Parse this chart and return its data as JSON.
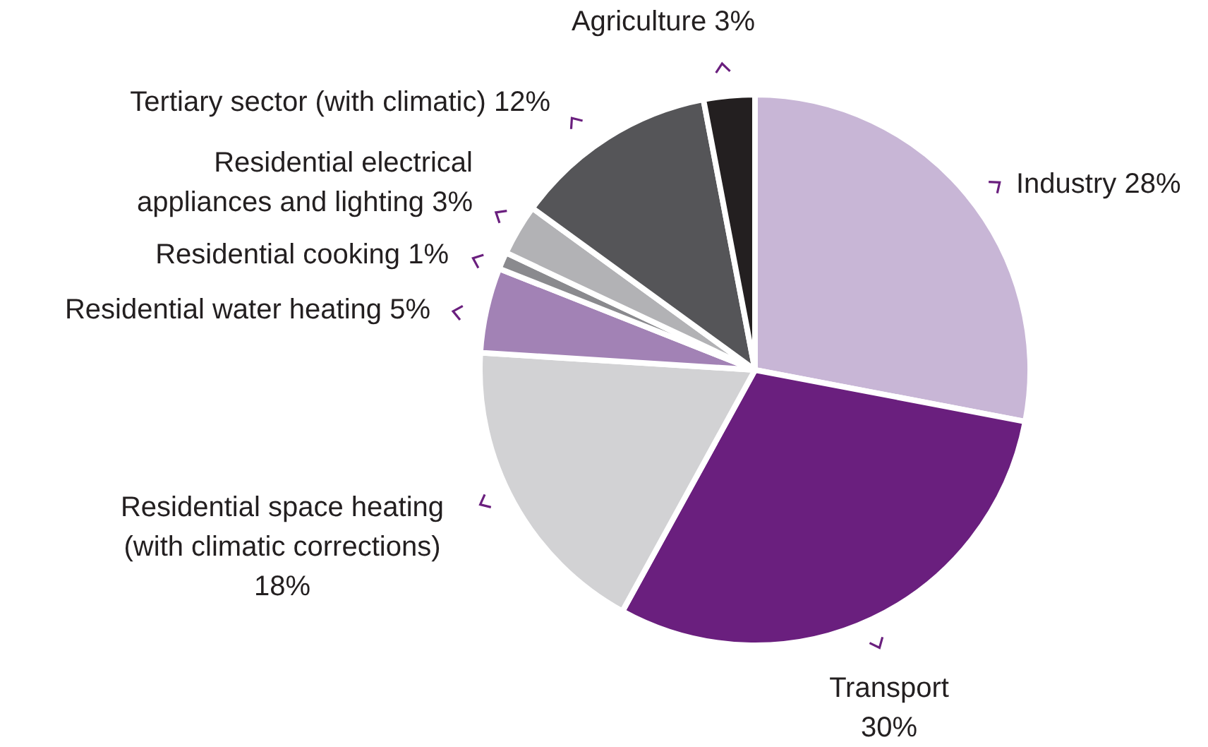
{
  "chart_data": {
    "type": "pie",
    "categories": [
      "Industry",
      "Transport",
      "Residential space heating\n(with climatic corrections)",
      "Residential water heating",
      "Residential cooking",
      "Residential electrical\nappliances and lighting",
      "Tertiary sector (with climatic)",
      "Agriculture"
    ],
    "values": [
      28,
      30,
      18,
      5,
      1,
      3,
      12,
      3
    ],
    "value_labels": [
      "28%",
      "30%",
      "18%",
      "5%",
      "1%",
      "3%",
      "12%",
      "3%"
    ],
    "colors": [
      "#c8b6d6",
      "#6a1f7e",
      "#d2d2d4",
      "#a282b5",
      "#8a8a8e",
      "#b2b2b5",
      "#555558",
      "#231f20"
    ],
    "legend": false
  }
}
